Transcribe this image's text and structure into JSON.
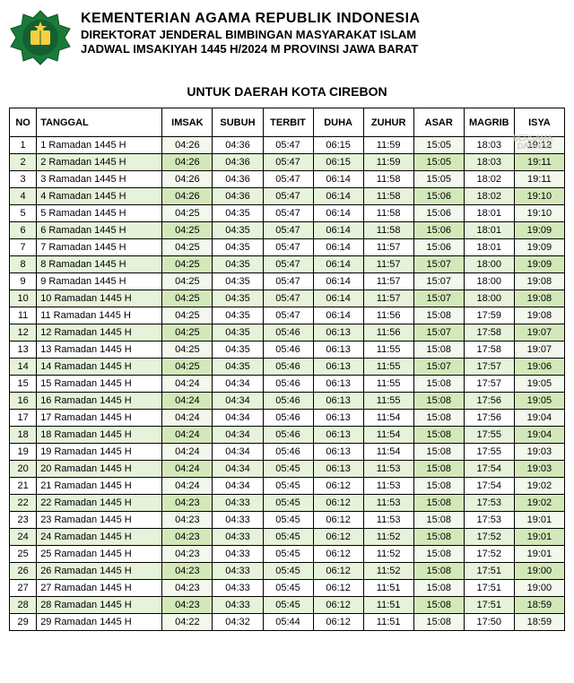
{
  "header": {
    "title1": "KEMENTERIAN AGAMA REPUBLIK INDONESIA",
    "title2": "DIREKTORAT JENDERAL BIMBINGAN MASYARAKAT ISLAM",
    "title3": "JADWAL IMSAKIYAH 1445 H/2024 M PROVINSI JAWA BARAT",
    "region": "UNTUK DAERAH KOTA CIREBON"
  },
  "watermark": "BERSAMA\nDAKWAH",
  "logo": {
    "bg_color": "#1a7a3a",
    "star_color": "#f5d040",
    "book_color": "#f5d040"
  },
  "table": {
    "columns": [
      "NO",
      "TANGGAL",
      "IMSAK",
      "SUBUH",
      "TERBIT",
      "DUHA",
      "ZUHUR",
      "ASAR",
      "MAGRIB",
      "ISYA"
    ],
    "highlight_cols": [
      2,
      7,
      9
    ],
    "row_colors": {
      "odd_bg": "#ffffff",
      "even_bg": "#e6f2d9",
      "odd_hl": "#f3f8ec",
      "even_hl": "#d3e8b9"
    },
    "rows": [
      {
        "no": 1,
        "tanggal": "1 Ramadan 1445 H",
        "times": [
          "04:26",
          "04:36",
          "05:47",
          "06:15",
          "11:59",
          "15:05",
          "18:03",
          "19:12"
        ]
      },
      {
        "no": 2,
        "tanggal": "2 Ramadan 1445 H",
        "times": [
          "04:26",
          "04:36",
          "05:47",
          "06:15",
          "11:59",
          "15:05",
          "18:03",
          "19:11"
        ]
      },
      {
        "no": 3,
        "tanggal": "3 Ramadan 1445 H",
        "times": [
          "04:26",
          "04:36",
          "05:47",
          "06:14",
          "11:58",
          "15:05",
          "18:02",
          "19:11"
        ]
      },
      {
        "no": 4,
        "tanggal": "4 Ramadan 1445 H",
        "times": [
          "04:26",
          "04:36",
          "05:47",
          "06:14",
          "11:58",
          "15:06",
          "18:02",
          "19:10"
        ]
      },
      {
        "no": 5,
        "tanggal": "5 Ramadan 1445 H",
        "times": [
          "04:25",
          "04:35",
          "05:47",
          "06:14",
          "11:58",
          "15:06",
          "18:01",
          "19:10"
        ]
      },
      {
        "no": 6,
        "tanggal": "6 Ramadan 1445 H",
        "times": [
          "04:25",
          "04:35",
          "05:47",
          "06:14",
          "11:58",
          "15:06",
          "18:01",
          "19:09"
        ]
      },
      {
        "no": 7,
        "tanggal": "7 Ramadan 1445 H",
        "times": [
          "04:25",
          "04:35",
          "05:47",
          "06:14",
          "11:57",
          "15:06",
          "18:01",
          "19:09"
        ]
      },
      {
        "no": 8,
        "tanggal": "8 Ramadan 1445 H",
        "times": [
          "04:25",
          "04:35",
          "05:47",
          "06:14",
          "11:57",
          "15:07",
          "18:00",
          "19:09"
        ]
      },
      {
        "no": 9,
        "tanggal": "9 Ramadan 1445 H",
        "times": [
          "04:25",
          "04:35",
          "05:47",
          "06:14",
          "11:57",
          "15:07",
          "18:00",
          "19:08"
        ]
      },
      {
        "no": 10,
        "tanggal": "10 Ramadan 1445 H",
        "times": [
          "04:25",
          "04:35",
          "05:47",
          "06:14",
          "11:57",
          "15:07",
          "18:00",
          "19:08"
        ]
      },
      {
        "no": 11,
        "tanggal": "11 Ramadan 1445 H",
        "times": [
          "04:25",
          "04:35",
          "05:47",
          "06:14",
          "11:56",
          "15:08",
          "17:59",
          "19:08"
        ]
      },
      {
        "no": 12,
        "tanggal": "12 Ramadan 1445 H",
        "times": [
          "04:25",
          "04:35",
          "05:46",
          "06:13",
          "11:56",
          "15:07",
          "17:58",
          "19:07"
        ]
      },
      {
        "no": 13,
        "tanggal": "13 Ramadan 1445 H",
        "times": [
          "04:25",
          "04:35",
          "05:46",
          "06:13",
          "11:55",
          "15:08",
          "17:58",
          "19:07"
        ]
      },
      {
        "no": 14,
        "tanggal": "14 Ramadan 1445 H",
        "times": [
          "04:25",
          "04:35",
          "05:46",
          "06:13",
          "11:55",
          "15:07",
          "17:57",
          "19:06"
        ]
      },
      {
        "no": 15,
        "tanggal": "15 Ramadan 1445 H",
        "times": [
          "04:24",
          "04:34",
          "05:46",
          "06:13",
          "11:55",
          "15:08",
          "17:57",
          "19:05"
        ]
      },
      {
        "no": 16,
        "tanggal": "16 Ramadan 1445 H",
        "times": [
          "04:24",
          "04:34",
          "05:46",
          "06:13",
          "11:55",
          "15:08",
          "17:56",
          "19:05"
        ]
      },
      {
        "no": 17,
        "tanggal": "17 Ramadan 1445 H",
        "times": [
          "04:24",
          "04:34",
          "05:46",
          "06:13",
          "11:54",
          "15:08",
          "17:56",
          "19:04"
        ]
      },
      {
        "no": 18,
        "tanggal": "18 Ramadan 1445 H",
        "times": [
          "04:24",
          "04:34",
          "05:46",
          "06:13",
          "11:54",
          "15:08",
          "17:55",
          "19:04"
        ]
      },
      {
        "no": 19,
        "tanggal": "19 Ramadan 1445 H",
        "times": [
          "04:24",
          "04:34",
          "05:46",
          "06:13",
          "11:54",
          "15:08",
          "17:55",
          "19:03"
        ]
      },
      {
        "no": 20,
        "tanggal": "20 Ramadan 1445 H",
        "times": [
          "04:24",
          "04:34",
          "05:45",
          "06:13",
          "11:53",
          "15:08",
          "17:54",
          "19:03"
        ]
      },
      {
        "no": 21,
        "tanggal": "21 Ramadan 1445 H",
        "times": [
          "04:24",
          "04:34",
          "05:45",
          "06:12",
          "11:53",
          "15:08",
          "17:54",
          "19:02"
        ]
      },
      {
        "no": 22,
        "tanggal": "22 Ramadan 1445 H",
        "times": [
          "04:23",
          "04:33",
          "05:45",
          "06:12",
          "11:53",
          "15:08",
          "17:53",
          "19:02"
        ]
      },
      {
        "no": 23,
        "tanggal": "23 Ramadan 1445 H",
        "times": [
          "04:23",
          "04:33",
          "05:45",
          "06:12",
          "11:53",
          "15:08",
          "17:53",
          "19:01"
        ]
      },
      {
        "no": 24,
        "tanggal": "24 Ramadan 1445 H",
        "times": [
          "04:23",
          "04:33",
          "05:45",
          "06:12",
          "11:52",
          "15:08",
          "17:52",
          "19:01"
        ]
      },
      {
        "no": 25,
        "tanggal": "25 Ramadan 1445 H",
        "times": [
          "04:23",
          "04:33",
          "05:45",
          "06:12",
          "11:52",
          "15:08",
          "17:52",
          "19:01"
        ]
      },
      {
        "no": 26,
        "tanggal": "26 Ramadan 1445 H",
        "times": [
          "04:23",
          "04:33",
          "05:45",
          "06:12",
          "11:52",
          "15:08",
          "17:51",
          "19:00"
        ]
      },
      {
        "no": 27,
        "tanggal": "27 Ramadan 1445 H",
        "times": [
          "04:23",
          "04:33",
          "05:45",
          "06:12",
          "11:51",
          "15:08",
          "17:51",
          "19:00"
        ]
      },
      {
        "no": 28,
        "tanggal": "28 Ramadan 1445 H",
        "times": [
          "04:23",
          "04:33",
          "05:45",
          "06:12",
          "11:51",
          "15:08",
          "17:51",
          "18:59"
        ]
      },
      {
        "no": 29,
        "tanggal": "29 Ramadan 1445 H",
        "times": [
          "04:22",
          "04:32",
          "05:44",
          "06:12",
          "11:51",
          "15:08",
          "17:50",
          "18:59"
        ]
      }
    ]
  }
}
